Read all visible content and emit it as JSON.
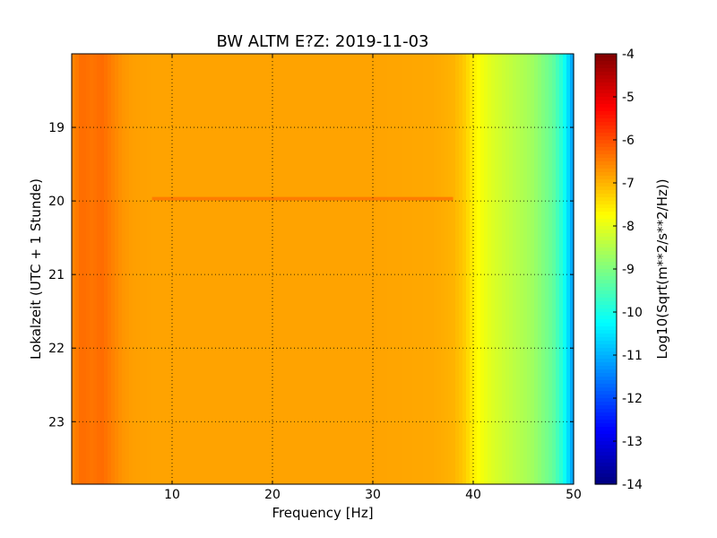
{
  "chart_data": {
    "type": "heatmap",
    "title": "BW ALTM E?Z: 2019-11-03",
    "xlabel": "Frequency [Hz]",
    "ylabel": "Lokalzeit (UTC + 1 Stunde)",
    "xlim": [
      0,
      50
    ],
    "ylim": [
      18.0,
      23.85
    ],
    "y_inverted": true,
    "x_ticks": [
      10,
      20,
      30,
      40,
      50
    ],
    "y_ticks": [
      19,
      20,
      21,
      22,
      23
    ],
    "grid": true,
    "colormap": "jet",
    "colorbar": {
      "label": "Log10(Sqrt(m**2/s**2/Hz))",
      "range": [
        -14,
        -4
      ],
      "ticks": [
        -4,
        -5,
        -6,
        -7,
        -8,
        -9,
        -10,
        -11,
        -12,
        -13,
        -14
      ]
    },
    "spectrum_profile": {
      "frequency_hz": [
        0,
        1,
        2,
        3,
        4,
        5,
        6,
        8,
        10,
        20,
        30,
        36,
        38,
        39,
        40,
        41,
        42,
        44,
        46,
        48,
        49,
        50
      ],
      "value": [
        -6.6,
        -6.3,
        -6.4,
        -6.3,
        -6.5,
        -6.7,
        -6.8,
        -6.85,
        -6.85,
        -6.85,
        -6.85,
        -6.9,
        -7.0,
        -7.2,
        -7.6,
        -7.9,
        -8.1,
        -8.4,
        -8.7,
        -9.3,
        -10.0,
        -11.3
      ]
    },
    "annotations": [
      {
        "type": "horizontal_band",
        "time": 19.97,
        "value": -6.4
      }
    ]
  }
}
